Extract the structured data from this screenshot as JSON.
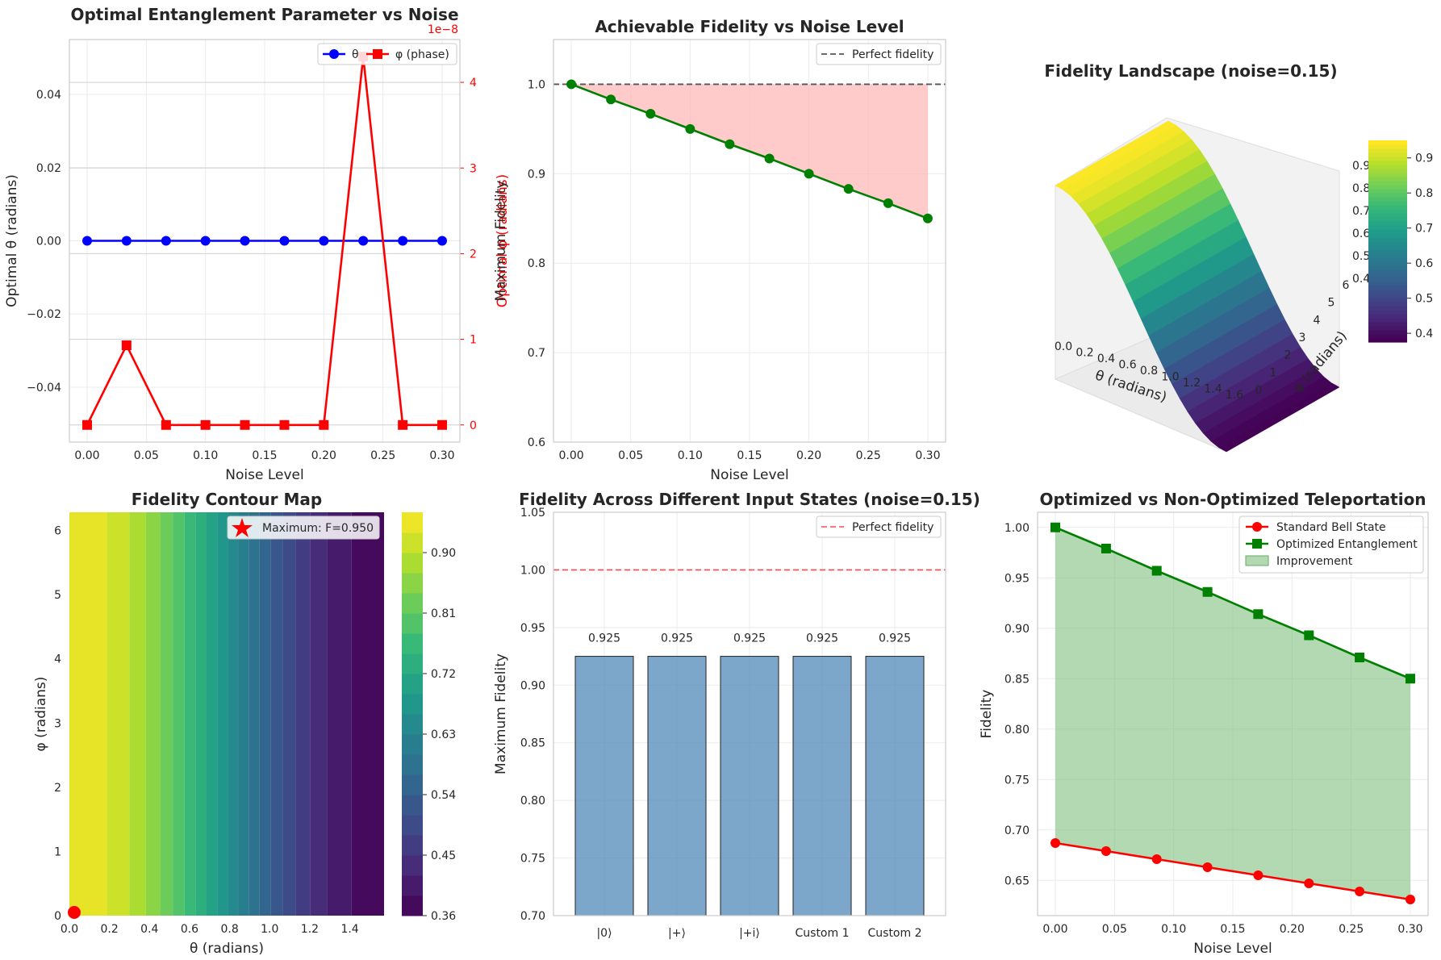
{
  "chart_data": [
    {
      "id": "p1",
      "type": "line",
      "title": "Optimal Entanglement Parameter vs Noise",
      "xlabel": "Noise Level",
      "ylabel": "Optimal θ (radians)",
      "ylabel_right": "Optimal φ (radians)",
      "right_axis_multiplier": "1e−8",
      "xlim": [
        -0.015,
        0.315
      ],
      "ylim": [
        -0.055,
        0.055
      ],
      "ylim_right": [
        -0.2,
        4.5
      ],
      "xticks": [
        0.0,
        0.05,
        0.1,
        0.15,
        0.2,
        0.25,
        0.3
      ],
      "xtick_labels": [
        "0.00",
        "0.05",
        "0.10",
        "0.15",
        "0.20",
        "0.25",
        "0.30"
      ],
      "yticks": [
        -0.04,
        -0.02,
        0.0,
        0.02,
        0.04
      ],
      "ytick_labels": [
        "−0.04",
        "−0.02",
        "0.00",
        "0.02",
        "0.04"
      ],
      "yticks_right": [
        0,
        1,
        2,
        3,
        4
      ],
      "ytick_labels_right": [
        "0",
        "1",
        "2",
        "3",
        "4"
      ],
      "x": [
        0.0,
        0.0333,
        0.0667,
        0.1,
        0.1333,
        0.1667,
        0.2,
        0.2333,
        0.2667,
        0.3
      ],
      "series": [
        {
          "name": "θ",
          "axis": "left",
          "marker": "circle",
          "color": "#0000ff",
          "values": [
            0,
            0,
            0,
            0,
            0,
            0,
            0,
            0,
            0,
            0
          ]
        },
        {
          "name": "φ (phase)",
          "axis": "right",
          "marker": "square",
          "color": "#ff0000",
          "values": [
            0,
            0.93,
            0,
            0,
            0,
            0,
            0,
            4.3,
            0,
            0
          ]
        }
      ],
      "legend_position": "top-right"
    },
    {
      "id": "p2",
      "type": "line",
      "title": "Achievable Fidelity vs Noise Level",
      "xlabel": "Noise Level",
      "ylabel": "Maximum Fidelity",
      "xlim": [
        -0.015,
        0.315
      ],
      "ylim": [
        0.6,
        1.05
      ],
      "xticks": [
        0.0,
        0.05,
        0.1,
        0.15,
        0.2,
        0.25,
        0.3
      ],
      "xtick_labels": [
        "0.00",
        "0.05",
        "0.10",
        "0.15",
        "0.20",
        "0.25",
        "0.30"
      ],
      "yticks": [
        0.6,
        0.7,
        0.8,
        0.9,
        1.0
      ],
      "ytick_labels": [
        "0.6",
        "0.7",
        "0.8",
        "0.9",
        "1.0"
      ],
      "x": [
        0.0,
        0.0333,
        0.0667,
        0.1,
        0.1333,
        0.1667,
        0.2,
        0.2333,
        0.2667,
        0.3
      ],
      "series": [
        {
          "name": "",
          "marker": "circle",
          "color": "#008000",
          "values": [
            1.0,
            0.983,
            0.967,
            0.95,
            0.933,
            0.917,
            0.9,
            0.883,
            0.867,
            0.85
          ]
        }
      ],
      "reference_line": {
        "name": "Perfect fidelity",
        "value": 1.0,
        "color": "#555555"
      },
      "fill_color": "#ffb3b3",
      "legend_position": "top-right"
    },
    {
      "id": "p3",
      "type": "heatmap",
      "title": "Fidelity Landscape (noise=0.15)",
      "xlabel": "θ (radians)",
      "ylabel": "φ (radians)",
      "xtick_labels": [
        "0.0",
        "0.2",
        "0.4",
        "0.6",
        "0.8",
        "1.0",
        "1.2",
        "1.4",
        "1.6"
      ],
      "ytick_labels": [
        "0",
        "1",
        "2",
        "3",
        "4",
        "5",
        "6"
      ],
      "ztick_labels": [
        "0.4",
        "0.5",
        "0.6",
        "0.7",
        "0.8",
        "0.9"
      ],
      "xlim": [
        0,
        1.5708
      ],
      "ylim": [
        0,
        6.2832
      ],
      "zlim": [
        0.375,
        0.95
      ],
      "colorbar_ticks": [
        0.4,
        0.5,
        0.6,
        0.7,
        0.8,
        0.9
      ],
      "colorbar_tick_labels": [
        "0.4",
        "0.5",
        "0.6",
        "0.7",
        "0.8",
        "0.9"
      ],
      "colormap": "viridis",
      "function": "F = 0.375 + 0.575·cos²(θ)"
    },
    {
      "id": "p4",
      "type": "heatmap",
      "title": "Fidelity Contour Map",
      "xlabel": "θ (radians)",
      "ylabel": "φ (radians)",
      "xlim": [
        0,
        1.5708
      ],
      "ylim": [
        0,
        6.2832
      ],
      "xticks": [
        0,
        0.2,
        0.4,
        0.6,
        0.8,
        1.0,
        1.2,
        1.4
      ],
      "xtick_labels": [
        "0.0",
        "0.2",
        "0.4",
        "0.6",
        "0.8",
        "1.0",
        "1.2",
        "1.4"
      ],
      "yticks": [
        0,
        1,
        2,
        3,
        4,
        5,
        6
      ],
      "ytick_labels": [
        "0",
        "1",
        "2",
        "3",
        "4",
        "5",
        "6"
      ],
      "contour_levels": [
        0.36,
        0.39,
        0.42,
        0.45,
        0.48,
        0.51,
        0.54,
        0.57,
        0.6,
        0.63,
        0.66,
        0.69,
        0.72,
        0.75,
        0.78,
        0.81,
        0.84,
        0.87,
        0.9,
        0.93,
        0.96
      ],
      "colorbar_ticks": [
        0.36,
        0.45,
        0.54,
        0.63,
        0.72,
        0.81,
        0.9
      ],
      "colorbar_tick_labels": [
        "0.36",
        "0.45",
        "0.54",
        "0.63",
        "0.72",
        "0.81",
        "0.90"
      ],
      "colormap": "viridis",
      "maximum_marker": {
        "name": "Maximum: F=0.950",
        "x": 0.0,
        "y": 0.0,
        "color": "#ff0000"
      },
      "legend_position": "top-right"
    },
    {
      "id": "p5",
      "type": "bar",
      "title": "Fidelity Across Different Input States (noise=0.15)",
      "xlabel": "",
      "ylabel": "Maximum Fidelity",
      "ylim": [
        0.7,
        1.05
      ],
      "yticks": [
        0.7,
        0.75,
        0.8,
        0.85,
        0.9,
        0.95,
        1.0,
        1.05
      ],
      "ytick_labels": [
        "0.70",
        "0.75",
        "0.80",
        "0.85",
        "0.90",
        "0.95",
        "1.00",
        "1.05"
      ],
      "categories": [
        "|0⟩",
        "|+⟩",
        "|+i⟩",
        "Custom 1",
        "Custom 2"
      ],
      "values": [
        0.925,
        0.925,
        0.925,
        0.925,
        0.925
      ],
      "value_labels": [
        "0.925",
        "0.925",
        "0.925",
        "0.925",
        "0.925"
      ],
      "bar_color": "#4682b4",
      "reference_line": {
        "name": "Perfect fidelity",
        "value": 1.0,
        "color": "#ff0000"
      },
      "legend_position": "top-right"
    },
    {
      "id": "p6",
      "type": "line",
      "title": "Optimized vs Non-Optimized Teleportation",
      "xlabel": "Noise Level",
      "ylabel": "Fidelity",
      "xlim": [
        -0.015,
        0.315
      ],
      "ylim": [
        0.615,
        1.015
      ],
      "xticks": [
        0.0,
        0.05,
        0.1,
        0.15,
        0.2,
        0.25,
        0.3
      ],
      "xtick_labels": [
        "0.00",
        "0.05",
        "0.10",
        "0.15",
        "0.20",
        "0.25",
        "0.30"
      ],
      "yticks": [
        0.65,
        0.7,
        0.75,
        0.8,
        0.85,
        0.9,
        0.95,
        1.0
      ],
      "ytick_labels": [
        "0.65",
        "0.70",
        "0.75",
        "0.80",
        "0.85",
        "0.90",
        "0.95",
        "1.00"
      ],
      "x": [
        0.0,
        0.0429,
        0.0857,
        0.1286,
        0.1714,
        0.2143,
        0.2571,
        0.3
      ],
      "series": [
        {
          "name": "Standard Bell State",
          "marker": "circle",
          "color": "#ff0000",
          "values": [
            0.687,
            0.679,
            0.671,
            0.663,
            0.655,
            0.647,
            0.639,
            0.631
          ]
        },
        {
          "name": "Optimized Entanglement",
          "marker": "square",
          "color": "#008000",
          "values": [
            1.0,
            0.979,
            0.957,
            0.936,
            0.914,
            0.893,
            0.871,
            0.85
          ]
        }
      ],
      "fill": {
        "name": "Improvement",
        "color": "#7fbf7f"
      },
      "legend_position": "top-right"
    }
  ]
}
